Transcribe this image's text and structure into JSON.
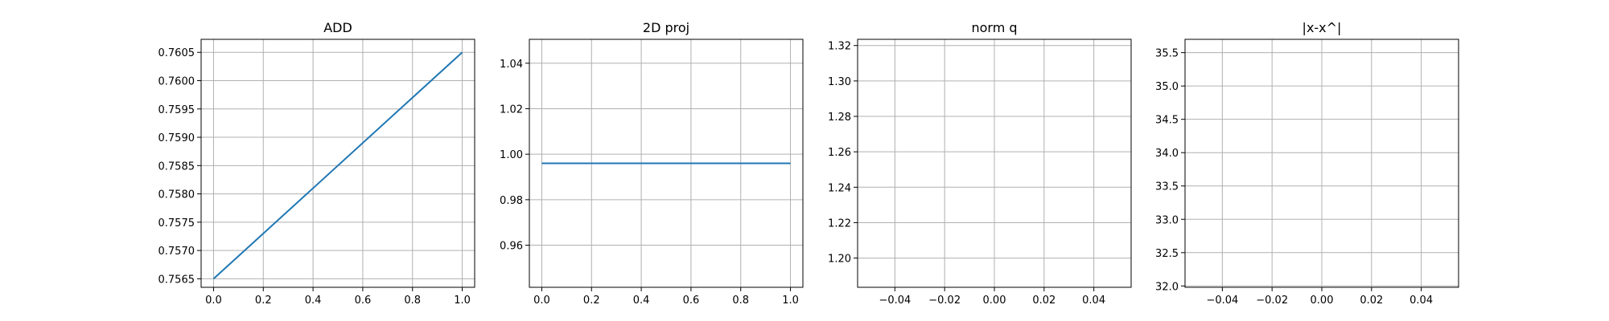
{
  "chart_data": [
    {
      "type": "line",
      "title": "ADD",
      "xlim": [
        -0.05,
        1.05
      ],
      "ylim": [
        0.75635,
        0.76073
      ],
      "xticks": [
        0.0,
        0.2,
        0.4,
        0.6,
        0.8,
        1.0
      ],
      "xtick_labels": [
        "0.0",
        "0.2",
        "0.4",
        "0.6",
        "0.8",
        "1.0"
      ],
      "yticks": [
        0.7565,
        0.757,
        0.7575,
        0.758,
        0.7585,
        0.759,
        0.7595,
        0.76,
        0.7605
      ],
      "ytick_labels": [
        "0.7565",
        "0.7570",
        "0.7575",
        "0.7580",
        "0.7585",
        "0.7590",
        "0.7595",
        "0.7600",
        "0.7605"
      ],
      "grid": true,
      "color": "#1f77b4",
      "series": [
        {
          "x": [
            0,
            1
          ],
          "y": [
            0.7565,
            0.7605
          ]
        }
      ]
    },
    {
      "type": "line",
      "title": "2D proj",
      "xlim": [
        -0.05,
        1.05
      ],
      "ylim": [
        0.9415,
        1.0505
      ],
      "xticks": [
        0.0,
        0.2,
        0.4,
        0.6,
        0.8,
        1.0
      ],
      "xtick_labels": [
        "0.0",
        "0.2",
        "0.4",
        "0.6",
        "0.8",
        "1.0"
      ],
      "yticks": [
        0.96,
        0.98,
        1.0,
        1.02,
        1.04
      ],
      "ytick_labels": [
        "0.96",
        "0.98",
        "1.00",
        "1.02",
        "1.04"
      ],
      "grid": true,
      "color": "#1f77b4",
      "series": [
        {
          "x": [
            0,
            1
          ],
          "y": [
            0.996,
            0.996
          ]
        }
      ]
    },
    {
      "type": "line",
      "title": "norm q",
      "xlim": [
        -0.055,
        0.055
      ],
      "ylim": [
        1.1835,
        1.3235
      ],
      "xticks": [
        -0.04,
        -0.02,
        0.0,
        0.02,
        0.04
      ],
      "xtick_labels": [
        "−0.04",
        "−0.02",
        "0.00",
        "0.02",
        "0.04"
      ],
      "yticks": [
        1.2,
        1.22,
        1.24,
        1.26,
        1.28,
        1.3,
        1.32
      ],
      "ytick_labels": [
        "1.20",
        "1.22",
        "1.24",
        "1.26",
        "1.28",
        "1.30",
        "1.32"
      ],
      "grid": true,
      "color": "#1f77b4",
      "series": []
    },
    {
      "type": "line",
      "title": "|x-x^|",
      "xlim": [
        -0.055,
        0.055
      ],
      "ylim": [
        31.98,
        35.7
      ],
      "xticks": [
        -0.04,
        -0.02,
        0.0,
        0.02,
        0.04
      ],
      "xtick_labels": [
        "−0.04",
        "−0.02",
        "0.00",
        "0.02",
        "0.04"
      ],
      "yticks": [
        32.0,
        32.5,
        33.0,
        33.5,
        34.0,
        34.5,
        35.0,
        35.5
      ],
      "ytick_labels": [
        "32.0",
        "32.5",
        "33.0",
        "33.5",
        "34.0",
        "34.5",
        "35.0",
        "35.5"
      ],
      "grid": true,
      "color": "#1f77b4",
      "series": []
    }
  ]
}
